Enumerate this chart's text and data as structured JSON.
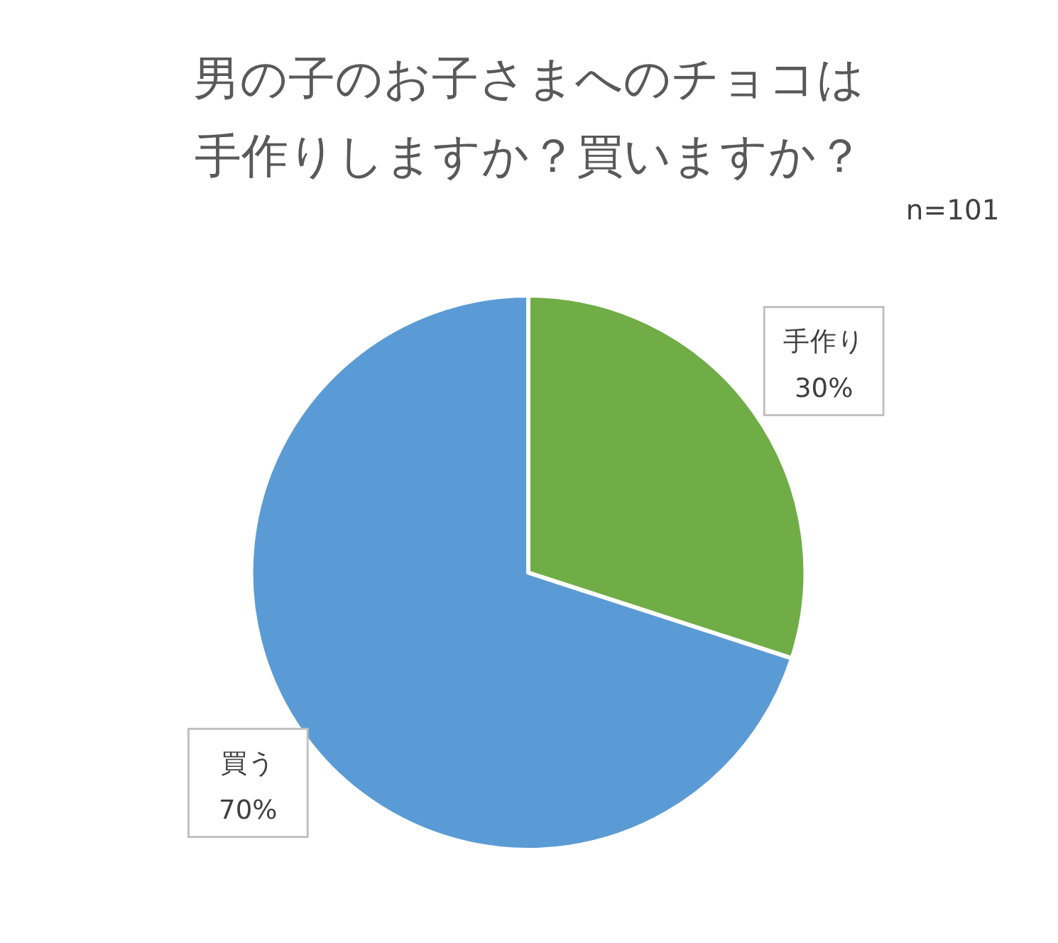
{
  "chart_data": {
    "type": "pie",
    "title": "男の子のお子さまへのチョコは手作りしますか？買いますか？",
    "annotations": [
      "n=101"
    ],
    "categories": [
      "手作り",
      "買う"
    ],
    "values": [
      30,
      70
    ],
    "colors": [
      "#70ad47",
      "#5b9bd5"
    ],
    "value_labels": [
      "30%",
      "70%"
    ]
  }
}
